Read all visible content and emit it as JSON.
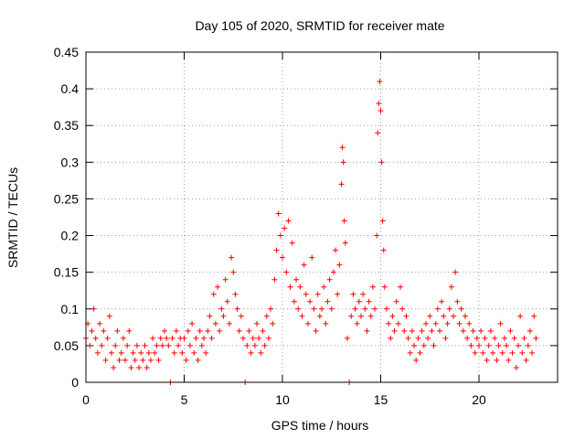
{
  "chart_data": {
    "type": "scatter",
    "title": "Day 105 of 2020, SRMTID for receiver mate",
    "xlabel": "GPS time / hours",
    "ylabel": "SRMTID / TECUs",
    "xlim": [
      0,
      24
    ],
    "ylim": [
      0,
      0.45
    ],
    "grid": true,
    "marker": "+",
    "color": "#ff0000",
    "xticks": [
      0,
      5,
      10,
      15,
      20
    ],
    "xtick_labels": [
      "0",
      "5",
      "10",
      "15",
      "20"
    ],
    "yticks": [
      0,
      0.05,
      0.1,
      0.15,
      0.2,
      0.25,
      0.3,
      0.35,
      0.4,
      0.45
    ],
    "ytick_labels": [
      "0",
      "0.05",
      "0.1",
      "0.15",
      "0.2",
      "0.25",
      "0.3",
      "0.35",
      "0.4",
      "0.45"
    ],
    "series": [
      {
        "name": "SRMTID",
        "points": [
          [
            0.0,
            0.06
          ],
          [
            0.1,
            0.08
          ],
          [
            0.2,
            0.05
          ],
          [
            0.3,
            0.07
          ],
          [
            0.4,
            0.1
          ],
          [
            0.5,
            0.06
          ],
          [
            0.6,
            0.04
          ],
          [
            0.7,
            0.08
          ],
          [
            0.8,
            0.05
          ],
          [
            0.9,
            0.07
          ],
          [
            1.0,
            0.03
          ],
          [
            1.1,
            0.06
          ],
          [
            1.2,
            0.09
          ],
          [
            1.3,
            0.04
          ],
          [
            1.4,
            0.02
          ],
          [
            1.5,
            0.05
          ],
          [
            1.6,
            0.07
          ],
          [
            1.7,
            0.03
          ],
          [
            1.8,
            0.04
          ],
          [
            1.9,
            0.06
          ],
          [
            2.0,
            0.03
          ],
          [
            2.1,
            0.05
          ],
          [
            2.2,
            0.07
          ],
          [
            2.3,
            0.02
          ],
          [
            2.4,
            0.04
          ],
          [
            2.5,
            0.03
          ],
          [
            2.6,
            0.05
          ],
          [
            2.7,
            0.02
          ],
          [
            2.8,
            0.04
          ],
          [
            2.9,
            0.03
          ],
          [
            3.0,
            0.05
          ],
          [
            3.1,
            0.02
          ],
          [
            3.2,
            0.04
          ],
          [
            3.3,
            0.03
          ],
          [
            3.4,
            0.06
          ],
          [
            3.5,
            0.04
          ],
          [
            3.6,
            0.05
          ],
          [
            3.7,
            0.03
          ],
          [
            3.8,
            0.06
          ],
          [
            3.9,
            0.05
          ],
          [
            4.0,
            0.07
          ],
          [
            4.1,
            0.06
          ],
          [
            4.2,
            0.05
          ],
          [
            4.3,
            0.0
          ],
          [
            4.4,
            0.06
          ],
          [
            4.5,
            0.04
          ],
          [
            4.6,
            0.07
          ],
          [
            4.7,
            0.05
          ],
          [
            4.8,
            0.06
          ],
          [
            4.9,
            0.04
          ],
          [
            5.0,
            0.06
          ],
          [
            5.1,
            0.03
          ],
          [
            5.2,
            0.07
          ],
          [
            5.3,
            0.05
          ],
          [
            5.4,
            0.08
          ],
          [
            5.5,
            0.04
          ],
          [
            5.6,
            0.06
          ],
          [
            5.7,
            0.03
          ],
          [
            5.8,
            0.07
          ],
          [
            5.9,
            0.05
          ],
          [
            6.0,
            0.06
          ],
          [
            6.1,
            0.04
          ],
          [
            6.2,
            0.07
          ],
          [
            6.3,
            0.09
          ],
          [
            6.4,
            0.06
          ],
          [
            6.5,
            0.12
          ],
          [
            6.6,
            0.08
          ],
          [
            6.7,
            0.13
          ],
          [
            6.8,
            0.07
          ],
          [
            6.9,
            0.1
          ],
          [
            7.0,
            0.09
          ],
          [
            7.1,
            0.14
          ],
          [
            7.2,
            0.11
          ],
          [
            7.3,
            0.08
          ],
          [
            7.4,
            0.17
          ],
          [
            7.5,
            0.15
          ],
          [
            7.6,
            0.12
          ],
          [
            7.7,
            0.1
          ],
          [
            7.8,
            0.07
          ],
          [
            7.9,
            0.09
          ],
          [
            8.0,
            0.06
          ],
          [
            8.1,
            0.0
          ],
          [
            8.2,
            0.05
          ],
          [
            8.3,
            0.07
          ],
          [
            8.4,
            0.04
          ],
          [
            8.5,
            0.06
          ],
          [
            8.6,
            0.05
          ],
          [
            8.7,
            0.08
          ],
          [
            8.8,
            0.06
          ],
          [
            8.9,
            0.04
          ],
          [
            9.0,
            0.07
          ],
          [
            9.1,
            0.05
          ],
          [
            9.2,
            0.09
          ],
          [
            9.3,
            0.06
          ],
          [
            9.4,
            0.1
          ],
          [
            9.5,
            0.08
          ],
          [
            9.6,
            0.14
          ],
          [
            9.7,
            0.18
          ],
          [
            9.8,
            0.23
          ],
          [
            9.9,
            0.2
          ],
          [
            10.0,
            0.17
          ],
          [
            10.1,
            0.21
          ],
          [
            10.2,
            0.15
          ],
          [
            10.3,
            0.22
          ],
          [
            10.4,
            0.13
          ],
          [
            10.5,
            0.19
          ],
          [
            10.6,
            0.11
          ],
          [
            10.7,
            0.14
          ],
          [
            10.8,
            0.1
          ],
          [
            10.9,
            0.13
          ],
          [
            11.0,
            0.09
          ],
          [
            11.1,
            0.16
          ],
          [
            11.2,
            0.12
          ],
          [
            11.3,
            0.08
          ],
          [
            11.4,
            0.11
          ],
          [
            11.5,
            0.17
          ],
          [
            11.6,
            0.1
          ],
          [
            11.7,
            0.07
          ],
          [
            11.8,
            0.12
          ],
          [
            11.9,
            0.09
          ],
          [
            12.0,
            0.1
          ],
          [
            12.1,
            0.13
          ],
          [
            12.2,
            0.08
          ],
          [
            12.3,
            0.11
          ],
          [
            12.4,
            0.14
          ],
          [
            12.5,
            0.1
          ],
          [
            12.6,
            0.15
          ],
          [
            12.7,
            0.18
          ],
          [
            12.8,
            0.12
          ],
          [
            12.9,
            0.16
          ],
          [
            13.0,
            0.27
          ],
          [
            13.05,
            0.32
          ],
          [
            13.1,
            0.3
          ],
          [
            13.15,
            0.22
          ],
          [
            13.2,
            0.19
          ],
          [
            13.3,
            0.06
          ],
          [
            13.4,
            0.0
          ],
          [
            13.5,
            0.09
          ],
          [
            13.6,
            0.12
          ],
          [
            13.7,
            0.1
          ],
          [
            13.8,
            0.08
          ],
          [
            13.9,
            0.11
          ],
          [
            14.0,
            0.09
          ],
          [
            14.1,
            0.12
          ],
          [
            14.2,
            0.1
          ],
          [
            14.3,
            0.07
          ],
          [
            14.4,
            0.11
          ],
          [
            14.5,
            0.09
          ],
          [
            14.6,
            0.13
          ],
          [
            14.7,
            0.1
          ],
          [
            14.8,
            0.2
          ],
          [
            14.85,
            0.34
          ],
          [
            14.9,
            0.38
          ],
          [
            14.95,
            0.41
          ],
          [
            15.0,
            0.37
          ],
          [
            15.05,
            0.3
          ],
          [
            15.1,
            0.22
          ],
          [
            15.15,
            0.18
          ],
          [
            15.2,
            0.13
          ],
          [
            15.3,
            0.1
          ],
          [
            15.4,
            0.08
          ],
          [
            15.5,
            0.06
          ],
          [
            15.6,
            0.09
          ],
          [
            15.7,
            0.07
          ],
          [
            15.8,
            0.11
          ],
          [
            15.9,
            0.08
          ],
          [
            16.0,
            0.13
          ],
          [
            16.1,
            0.1
          ],
          [
            16.2,
            0.07
          ],
          [
            16.3,
            0.09
          ],
          [
            16.4,
            0.06
          ],
          [
            16.5,
            0.04
          ],
          [
            16.6,
            0.07
          ],
          [
            16.7,
            0.05
          ],
          [
            16.8,
            0.03
          ],
          [
            16.9,
            0.06
          ],
          [
            17.0,
            0.04
          ],
          [
            17.1,
            0.07
          ],
          [
            17.2,
            0.05
          ],
          [
            17.3,
            0.08
          ],
          [
            17.4,
            0.06
          ],
          [
            17.5,
            0.09
          ],
          [
            17.6,
            0.07
          ],
          [
            17.7,
            0.05
          ],
          [
            17.8,
            0.08
          ],
          [
            17.9,
            0.1
          ],
          [
            18.0,
            0.07
          ],
          [
            18.1,
            0.11
          ],
          [
            18.2,
            0.09
          ],
          [
            18.3,
            0.06
          ],
          [
            18.4,
            0.08
          ],
          [
            18.5,
            0.1
          ],
          [
            18.6,
            0.13
          ],
          [
            18.7,
            0.09
          ],
          [
            18.8,
            0.15
          ],
          [
            18.9,
            0.11
          ],
          [
            19.0,
            0.08
          ],
          [
            19.1,
            0.1
          ],
          [
            19.2,
            0.07
          ],
          [
            19.3,
            0.09
          ],
          [
            19.4,
            0.06
          ],
          [
            19.5,
            0.08
          ],
          [
            19.6,
            0.05
          ],
          [
            19.7,
            0.07
          ],
          [
            19.8,
            0.04
          ],
          [
            19.9,
            0.06
          ],
          [
            20.0,
            0.05
          ],
          [
            20.1,
            0.07
          ],
          [
            20.2,
            0.04
          ],
          [
            20.3,
            0.06
          ],
          [
            20.4,
            0.03
          ],
          [
            20.5,
            0.05
          ],
          [
            20.6,
            0.07
          ],
          [
            20.7,
            0.04
          ],
          [
            20.8,
            0.06
          ],
          [
            20.9,
            0.03
          ],
          [
            21.0,
            0.05
          ],
          [
            21.1,
            0.08
          ],
          [
            21.2,
            0.04
          ],
          [
            21.3,
            0.06
          ],
          [
            21.4,
            0.05
          ],
          [
            21.5,
            0.03
          ],
          [
            21.6,
            0.07
          ],
          [
            21.7,
            0.04
          ],
          [
            21.8,
            0.06
          ],
          [
            21.9,
            0.02
          ],
          [
            22.0,
            0.05
          ],
          [
            22.1,
            0.09
          ],
          [
            22.2,
            0.04
          ],
          [
            22.3,
            0.06
          ],
          [
            22.4,
            0.03
          ],
          [
            22.5,
            0.05
          ],
          [
            22.6,
            0.07
          ],
          [
            22.7,
            0.04
          ],
          [
            22.8,
            0.09
          ],
          [
            22.9,
            0.06
          ]
        ]
      }
    ]
  }
}
